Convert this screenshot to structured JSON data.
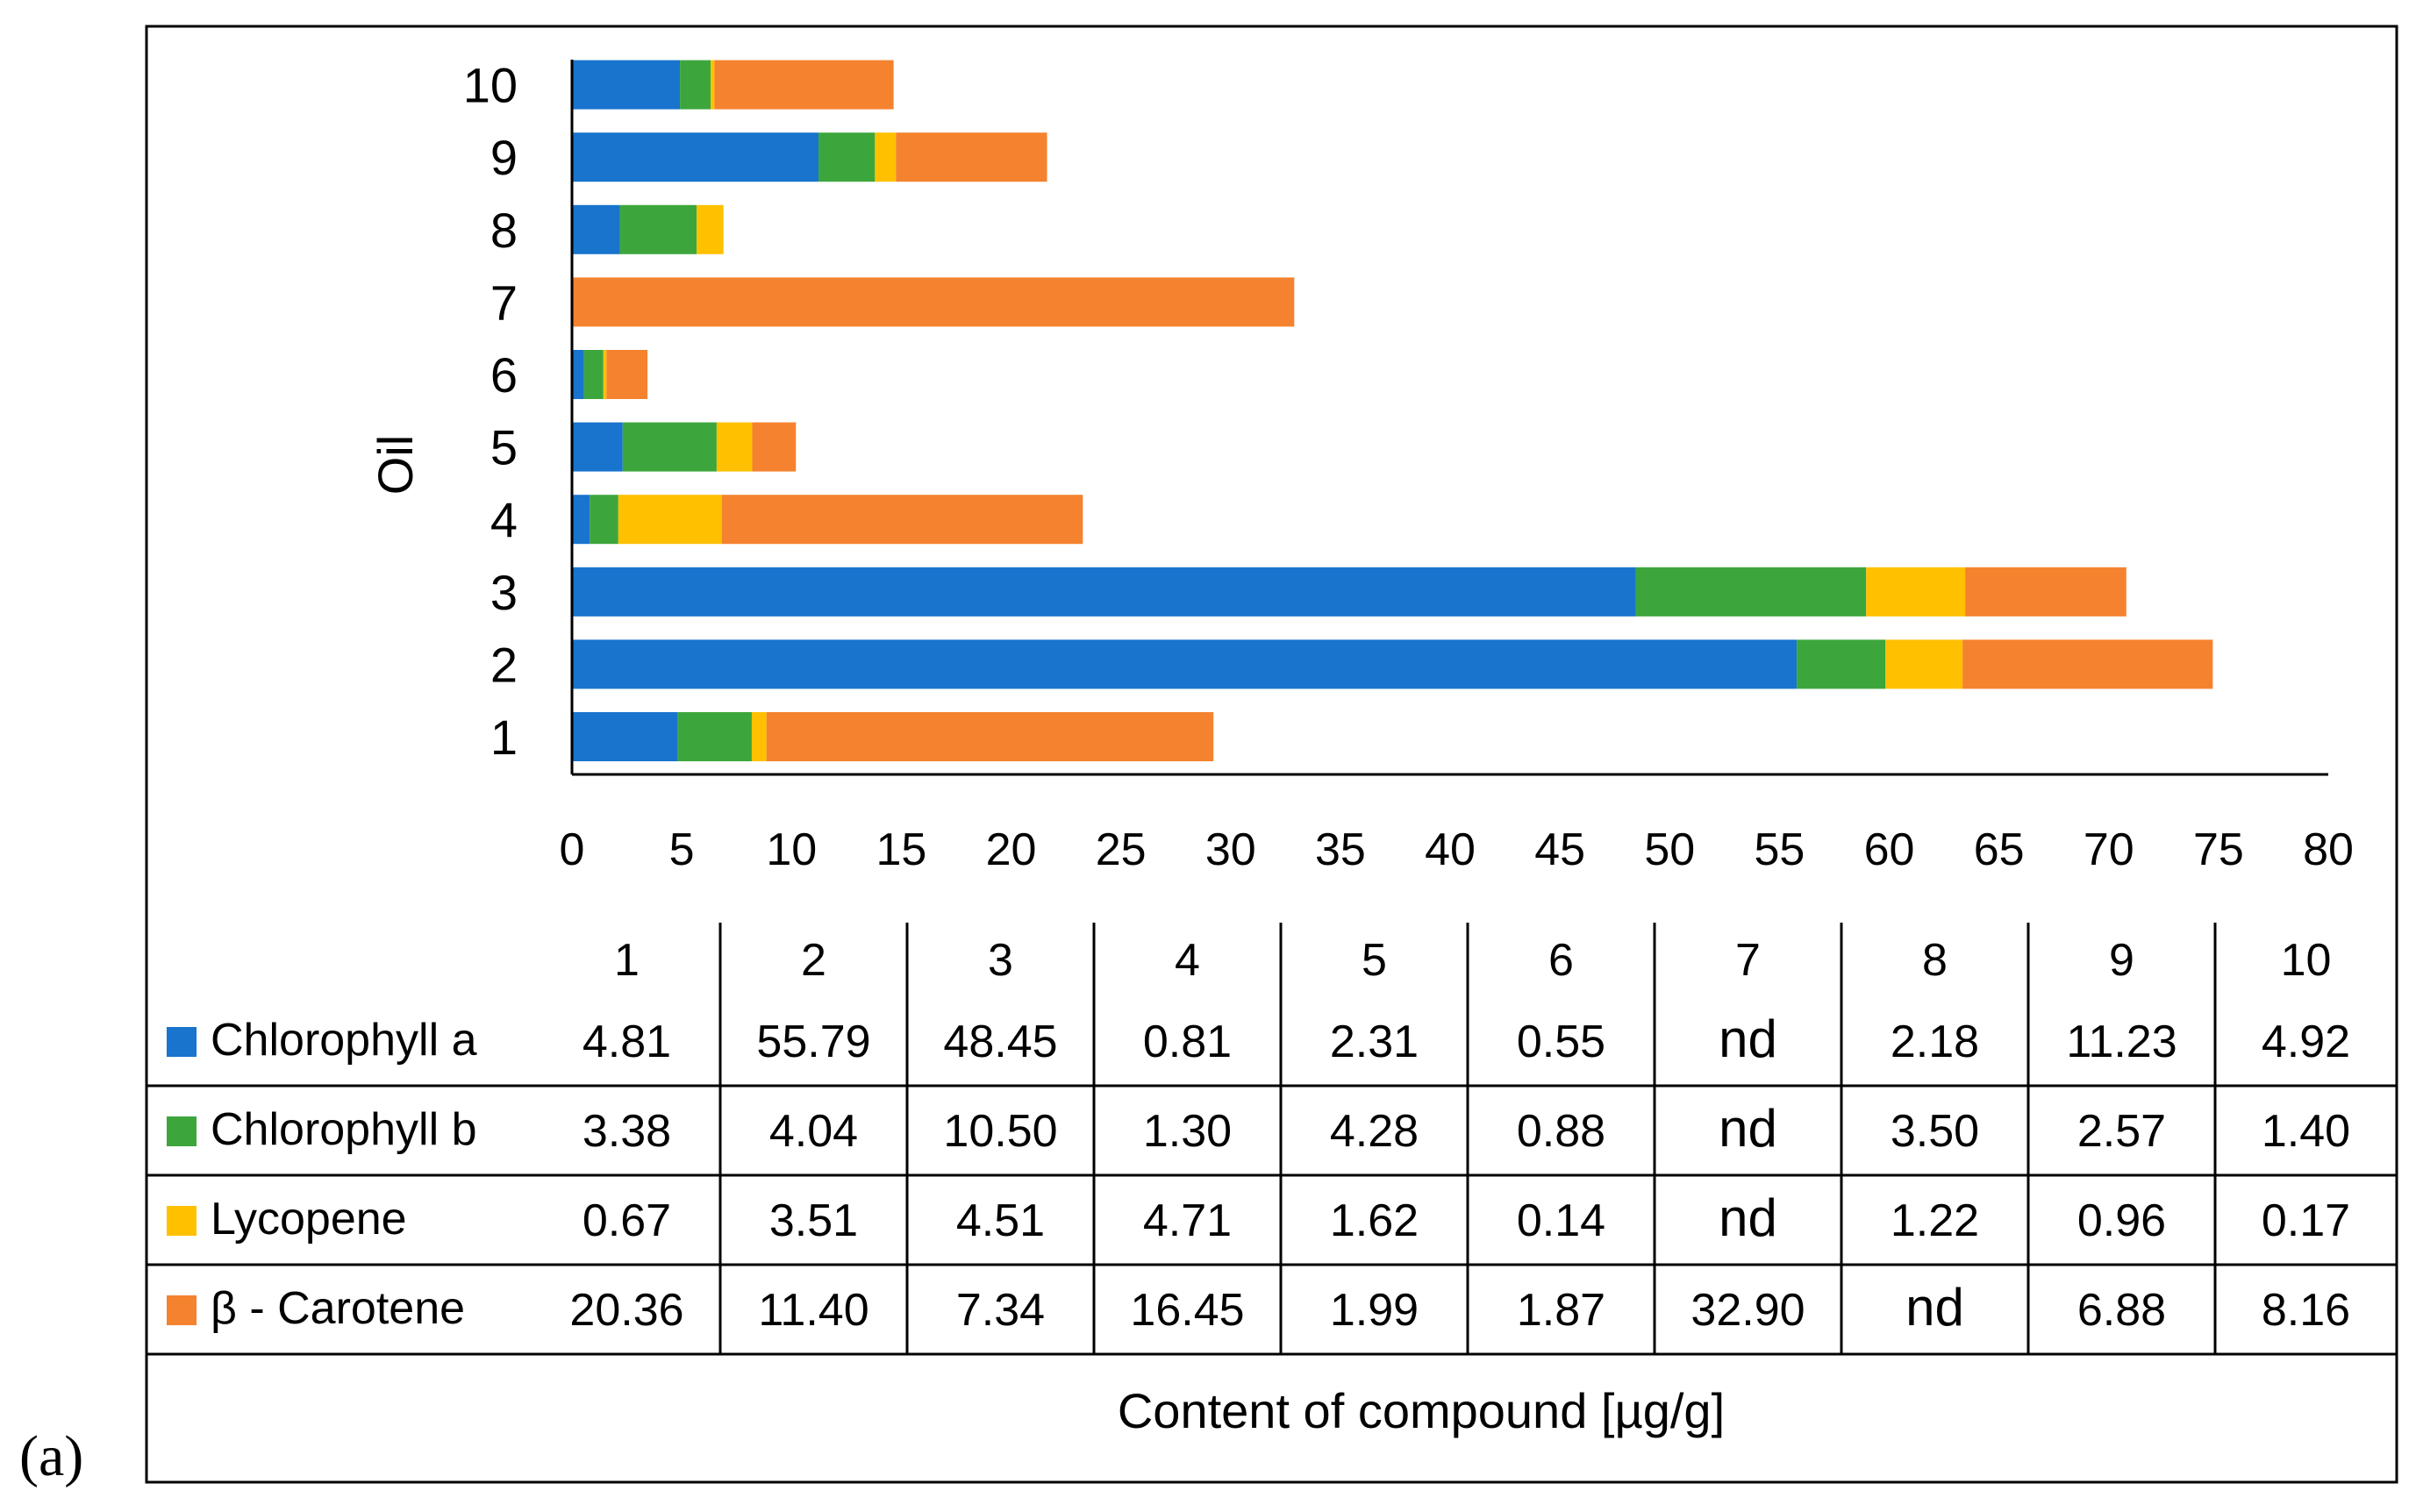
{
  "panel_label": "(a)",
  "chart_data": {
    "type": "bar",
    "orientation": "horizontal",
    "stacked": true,
    "title": "",
    "ylabel": "Oil",
    "xlabel": "Content of compound [µg/g]",
    "xlim": [
      0,
      80
    ],
    "xticks": [
      "0",
      "5",
      "10",
      "15",
      "20",
      "25",
      "30",
      "35",
      "40",
      "45",
      "50",
      "55",
      "60",
      "65",
      "70",
      "75",
      "80"
    ],
    "categories": [
      "1",
      "2",
      "3",
      "4",
      "5",
      "6",
      "7",
      "8",
      "9",
      "10"
    ],
    "series": [
      {
        "name": "Chlorophyll a",
        "color": "#1874CD",
        "values": [
          4.81,
          55.79,
          48.45,
          0.81,
          2.31,
          0.55,
          0,
          2.18,
          11.23,
          4.92
        ],
        "labels": [
          "4.81",
          "55.79",
          "48.45",
          "0.81",
          "2.31",
          "0.55",
          "nd",
          "2.18",
          "11.23",
          "4.92"
        ]
      },
      {
        "name": "Chlorophyll b",
        "color": "#3CA63C",
        "values": [
          3.38,
          4.04,
          10.5,
          1.3,
          4.28,
          0.88,
          0,
          3.5,
          2.57,
          1.4
        ],
        "labels": [
          "3.38",
          "4.04",
          "10.50",
          "1.30",
          "4.28",
          "0.88",
          "nd",
          "3.50",
          "2.57",
          "1.40"
        ]
      },
      {
        "name": "Lycopene",
        "color": "#FFC000",
        "values": [
          0.67,
          3.51,
          4.51,
          4.71,
          1.62,
          0.14,
          0,
          1.22,
          0.96,
          0.17
        ],
        "labels": [
          "0.67",
          "3.51",
          "4.51",
          "4.71",
          "1.62",
          "0.14",
          "nd",
          "1.22",
          "0.96",
          "0.17"
        ]
      },
      {
        "name": "β - Carotene",
        "color": "#F5822E",
        "values": [
          20.36,
          11.4,
          7.34,
          16.45,
          1.99,
          1.87,
          32.9,
          0,
          6.88,
          8.16
        ],
        "labels": [
          "20.36",
          "11.40",
          "7.34",
          "16.45",
          "1.99",
          "1.87",
          "32.90",
          "nd",
          "6.88",
          "8.16"
        ]
      }
    ],
    "data_table": true,
    "grid": false
  }
}
